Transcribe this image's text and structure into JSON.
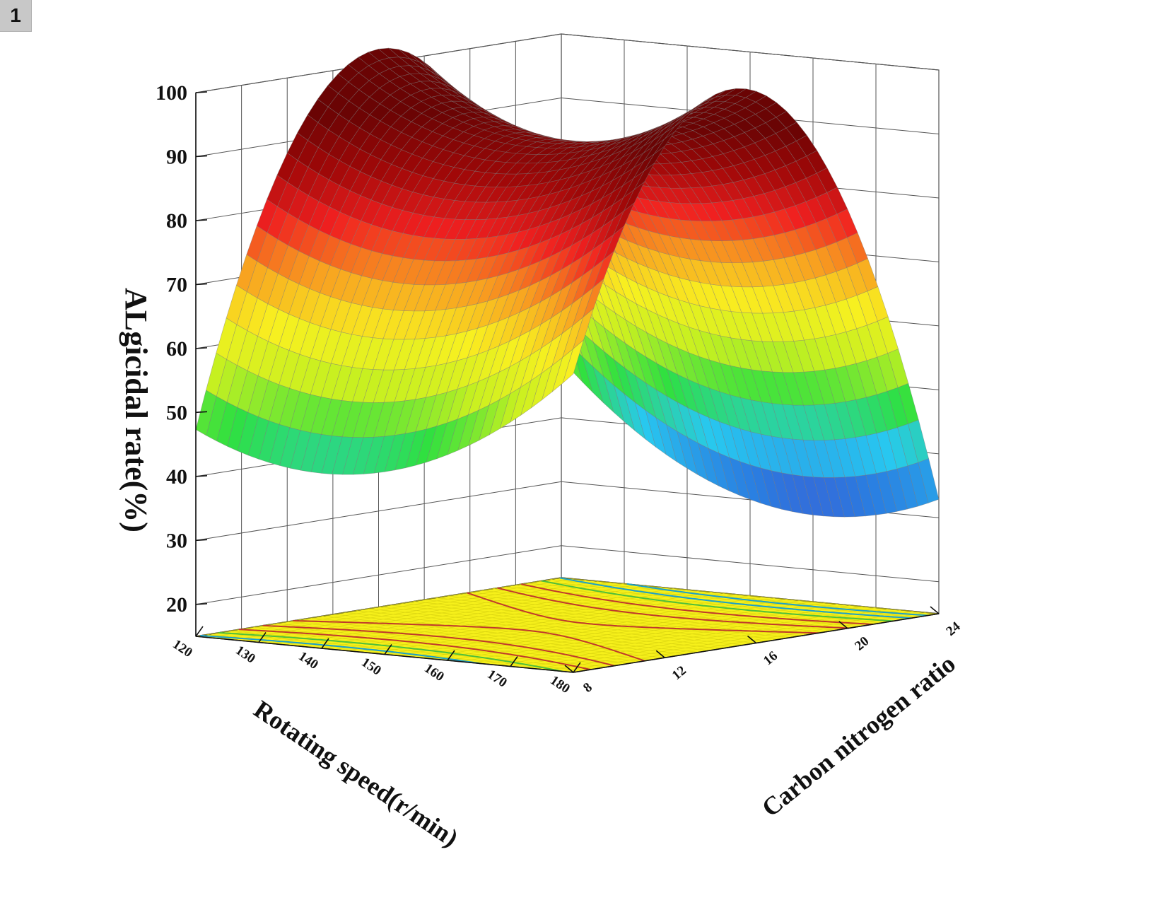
{
  "panel_label": "1",
  "colors": {
    "floor": "#f6f01a",
    "contour": "#c0392b",
    "grid": "#555555",
    "colormap": [
      "#6a0dad",
      "#2a7de1",
      "#28c8f0",
      "#2fe040",
      "#c8f020",
      "#f8f020",
      "#f8a020",
      "#f02020",
      "#a00808",
      "#6a0404"
    ]
  },
  "chart_data": {
    "type": "surface3d",
    "title": "",
    "xlabel": "Rotating speed(r/min)",
    "ylabel": "Carbon nitrogen ratio",
    "zlabel": "ALgicidal rate(%)",
    "x_ticks": [
      "120",
      "130",
      "140",
      "150",
      "160",
      "170",
      "180"
    ],
    "y_ticks": [
      "8",
      "12",
      "16",
      "20",
      "24"
    ],
    "z_ticks": [
      "20",
      "30",
      "40",
      "50",
      "60",
      "70",
      "80",
      "90",
      "100"
    ],
    "xlim": [
      120,
      180
    ],
    "ylim": [
      8,
      24
    ],
    "zlim": [
      15,
      100
    ],
    "optimum": {
      "x": 150,
      "y": 15.5,
      "z": 91
    },
    "corner_values": {
      "x120_y8": 54,
      "x180_y8": 55,
      "x120_y24": 55,
      "x180_y24": 27
    },
    "contour_levels": [
      40,
      50,
      60,
      70,
      80,
      90
    ],
    "grid": true
  }
}
